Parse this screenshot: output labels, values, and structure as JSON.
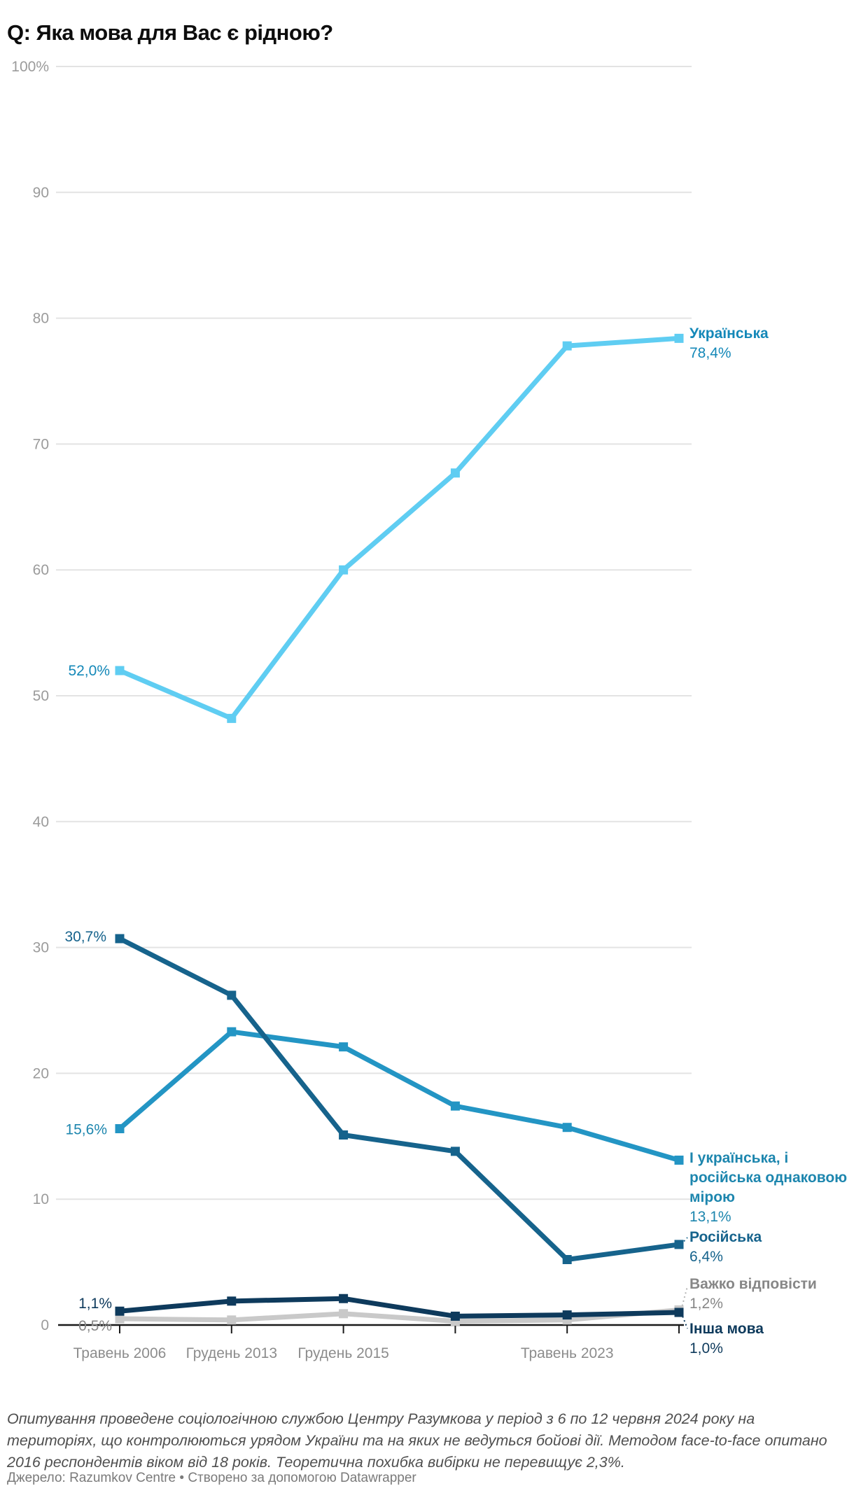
{
  "title": "Q: Яка мова для Вас є рідною?",
  "notes": "Опитування проведене соціологічною службою Центру Разумкова у період з 6 по 12 червня 2024 року на територіях, що контролюються урядом України та на яких не ведуться бойові дії. Методом face-to-face опитано 2016 респондентів віком від 18 років. Теоретична похибка вибірки не перевищує 2,3%.",
  "source": "Джерело: Razumkov Centre • Створено за допомогою Datawrapper",
  "chart_data": {
    "type": "line",
    "title": "Q: Яка мова для Вас є рідною?",
    "x_tick_labels": [
      "Травень 2006",
      "Грудень 2013",
      "Грудень 2015",
      "",
      "Травень 2023",
      ""
    ],
    "y_tick_labels": [
      "0",
      "10",
      "20",
      "30",
      "40",
      "50",
      "60",
      "70",
      "80",
      "90",
      "100%"
    ],
    "ylim": [
      0,
      100
    ],
    "grid": "horizontal",
    "legend_position": "right-edge-callouts",
    "series": [
      {
        "name": "Українська",
        "values": [
          52.0,
          48.2,
          60.0,
          67.7,
          77.8,
          78.4
        ],
        "color": "#5fcdf2",
        "label_color": "#1488b8",
        "start_label": "52,0%",
        "end_label": "Українська",
        "end_value": "78,4%"
      },
      {
        "name": "І українська, і російська однаковою мірою",
        "values": [
          15.6,
          23.3,
          22.1,
          17.4,
          15.7,
          13.1
        ],
        "color": "#2395c4",
        "label_color": "#1d86ae",
        "start_label": "15,6%",
        "end_label": "І українська, і російська однаковою мірою",
        "end_value": "13,1%"
      },
      {
        "name": "Російська",
        "values": [
          30.7,
          26.2,
          15.1,
          13.8,
          5.2,
          6.4
        ],
        "color": "#16638c",
        "label_color": "#16638c",
        "start_label": "30,7%",
        "end_label": "Російська",
        "end_value": "6,4%"
      },
      {
        "name": "Важко відповісти",
        "values": [
          0.5,
          0.4,
          0.9,
          0.3,
          0.4,
          1.2
        ],
        "color": "#c9c9c9",
        "label_color": "#878787",
        "start_label": "0,5%",
        "end_label": "Важко відповісти",
        "end_value": "1,2%"
      },
      {
        "name": "Інша мова",
        "values": [
          1.1,
          1.9,
          2.1,
          0.7,
          0.8,
          1.0
        ],
        "color": "#0e3a5c",
        "label_color": "#0e3a5c",
        "start_label": "1,1%",
        "end_label": "Інша мова",
        "end_value": "1,0%"
      }
    ]
  }
}
